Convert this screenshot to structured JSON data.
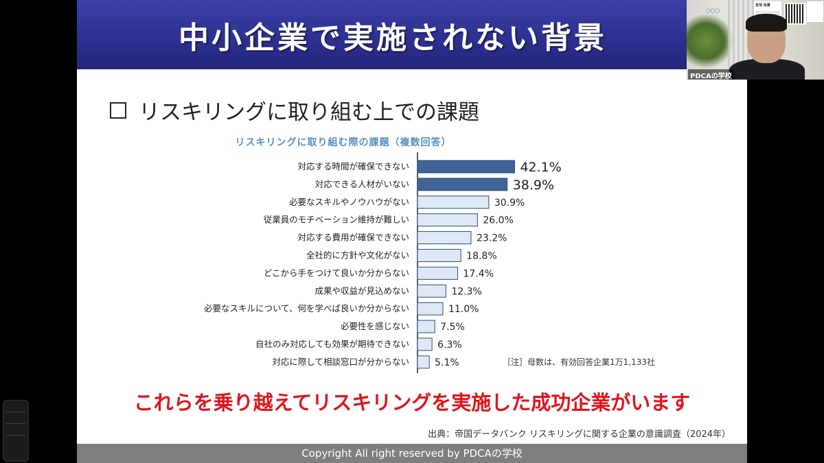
{
  "slide": {
    "title": "中小企業で実施されない背景",
    "subtitle": "リスキリングに取り組む上での課題",
    "message": "これらを乗り越えてリスキリングを実施した成功企業がいます",
    "source": "出典：帝国データバンク リスキリングに関する企業の意識調査（2024年）",
    "footer": "Copyright All right reserved by PDCAの学校",
    "note": "［注］母数は、有効回答企業1万1,133社"
  },
  "webcam": {
    "label": "PDCAの学校",
    "card_name": "宮地 尚貴"
  },
  "colors": {
    "banner": "#2b2f8f",
    "bar_highlight": "#3f6598",
    "bar_normal": "#dfe9f6",
    "bar_border": "#2a4a78",
    "message": "#e2141c",
    "chart_title": "#5a8fc1"
  },
  "chart_data": {
    "type": "bar",
    "orientation": "horizontal",
    "title": "リスキリングに取り組む際の課題（複数回答）",
    "unit": "%",
    "categories": [
      "対応する時間が確保できない",
      "対応できる人材がいない",
      "必要なスキルやノウハウがない",
      "従業員のモチベーション維持が難しい",
      "対応する費用が確保できない",
      "全社的に方針や文化がない",
      "どこから手をつけて良いか分からない",
      "成果や収益が見込めない",
      "必要なスキルについて、何を学べば良いか分からない",
      "必要性を感じない",
      "自社のみ対応しても効果が期待できない",
      "対応に際して相談窓口が分からない"
    ],
    "values": [
      42.1,
      38.9,
      30.9,
      26.0,
      23.2,
      18.8,
      17.4,
      12.3,
      11.0,
      7.5,
      6.3,
      5.1
    ],
    "labels": [
      "42.1%",
      "38.9%",
      "30.9%",
      "26.0%",
      "23.2%",
      "18.8%",
      "17.4%",
      "12.3%",
      "11.0%",
      "7.5%",
      "6.3%",
      "5.1%"
    ],
    "highlighted": [
      0,
      1
    ],
    "xlim": [
      0,
      45
    ],
    "grid": false
  }
}
